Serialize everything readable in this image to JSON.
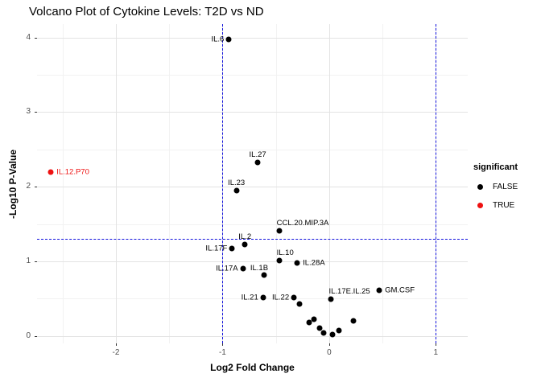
{
  "title": "Volcano Plot of Cytokine Levels: T2D vs ND",
  "chart_data": {
    "type": "scatter",
    "title": "Volcano Plot of Cytokine Levels: T2D vs ND",
    "xlabel": "Log2 Fold Change",
    "ylabel": "-Log10 P-Value",
    "xlim": [
      -2.74,
      1.3
    ],
    "ylim": [
      -0.1,
      4.18
    ],
    "x_ticks": [
      -2,
      -1,
      0,
      1
    ],
    "y_ticks": [
      0,
      1,
      2,
      3,
      4
    ],
    "x_minor_gridlines": [
      -2.5,
      -1.5,
      -0.5,
      0.5
    ],
    "y_minor_gridlines": [
      0.5,
      1.5,
      2.5,
      3.5
    ],
    "grid": true,
    "colors": {
      "false_point": "#000000",
      "true_point": "#ee1111",
      "threshold_line": "#1111dd",
      "major_grid": "#e3e3e3",
      "minor_grid": "#f2f2f2",
      "tick_text": "#4d4d4d"
    },
    "threshold_lines": {
      "style": "dashed",
      "vlines": [
        -1,
        1
      ],
      "hlines": [
        1.3
      ]
    },
    "legend": {
      "title": "significant",
      "position": "right",
      "entries": [
        {
          "label": "FALSE",
          "color": "#000000"
        },
        {
          "label": "TRUE",
          "color": "#ee1111"
        }
      ]
    },
    "points": [
      {
        "name": "IL.6",
        "x": -0.94,
        "y": 3.97,
        "significant": false,
        "label_pos": "left"
      },
      {
        "name": "IL.12.P70",
        "x": -2.61,
        "y": 2.2,
        "significant": true,
        "label_pos": "right"
      },
      {
        "name": "IL.27",
        "x": -0.67,
        "y": 2.33,
        "significant": false,
        "label_pos": "above"
      },
      {
        "name": "IL.23",
        "x": -0.87,
        "y": 1.95,
        "significant": false,
        "label_pos": "above"
      },
      {
        "name": "CCL.20.MIP.3A",
        "x": -0.47,
        "y": 1.41,
        "significant": false,
        "label_pos": "above-right"
      },
      {
        "name": "IL.2",
        "x": -0.79,
        "y": 1.23,
        "significant": false,
        "label_pos": "above"
      },
      {
        "name": "IL.17F",
        "x": -0.91,
        "y": 1.17,
        "significant": false,
        "label_pos": "left"
      },
      {
        "name": "IL.10",
        "x": -0.47,
        "y": 1.01,
        "significant": false,
        "label_pos": "above-right"
      },
      {
        "name": "IL.17A",
        "x": -0.81,
        "y": 0.9,
        "significant": false,
        "label_pos": "left"
      },
      {
        "name": "IL.1B",
        "x": -0.61,
        "y": 0.82,
        "significant": false,
        "label_pos": "above-left"
      },
      {
        "name": "IL.28A",
        "x": -0.3,
        "y": 0.98,
        "significant": false,
        "label_pos": "right"
      },
      {
        "name": "IL.21",
        "x": -0.62,
        "y": 0.51,
        "significant": false,
        "label_pos": "left"
      },
      {
        "name": "IL.22",
        "x": -0.33,
        "y": 0.51,
        "significant": false,
        "label_pos": "left"
      },
      {
        "name": "IL.17E.IL.25",
        "x": 0.02,
        "y": 0.49,
        "significant": false,
        "label_pos": "above-right"
      },
      {
        "name": "GM.CSF",
        "x": 0.47,
        "y": 0.61,
        "significant": false,
        "label_pos": "right"
      },
      {
        "name": "",
        "x": -0.28,
        "y": 0.43,
        "significant": false
      },
      {
        "name": "",
        "x": -0.19,
        "y": 0.175,
        "significant": false
      },
      {
        "name": "",
        "x": -0.14,
        "y": 0.22,
        "significant": false
      },
      {
        "name": "",
        "x": -0.09,
        "y": 0.1,
        "significant": false
      },
      {
        "name": "",
        "x": -0.05,
        "y": 0.04,
        "significant": false
      },
      {
        "name": "",
        "x": 0.03,
        "y": 0.015,
        "significant": false
      },
      {
        "name": "",
        "x": 0.09,
        "y": 0.07,
        "significant": false
      },
      {
        "name": "",
        "x": 0.23,
        "y": 0.205,
        "significant": false
      }
    ]
  }
}
